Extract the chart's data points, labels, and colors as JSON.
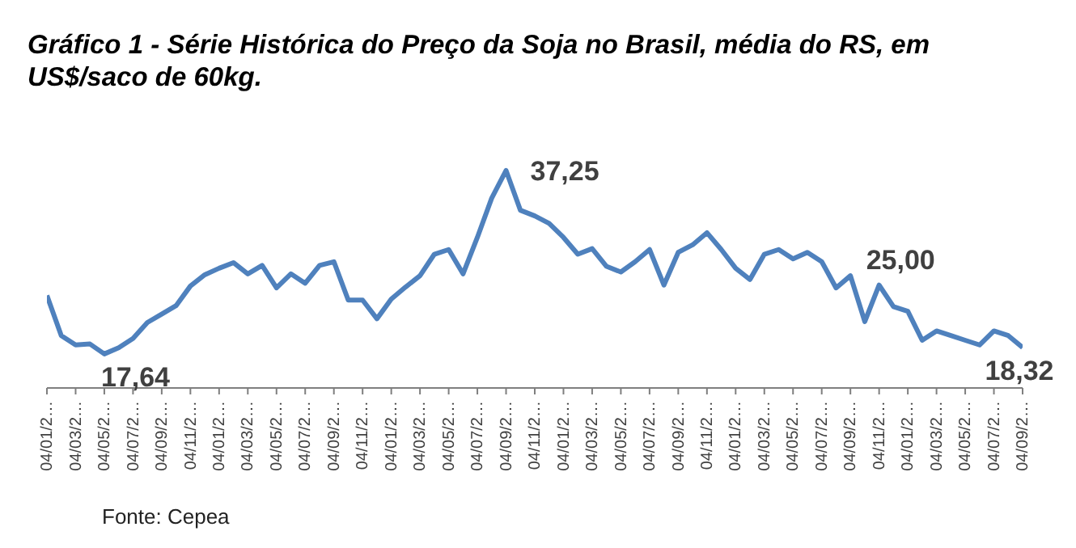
{
  "chart_data": {
    "type": "line",
    "title": "Gráfico 1 - Série Histórica do Preço da Soja no Brasil, média do RS, em US$/saco de 60kg.",
    "annotations": [
      "Fonte: Cepea"
    ],
    "categories": [
      "04/01/2…",
      null,
      "04/03/2…",
      null,
      "04/05/2…",
      null,
      "04/07/2…",
      null,
      "04/09/2…",
      null,
      "04/11/2…",
      null,
      "04/01/2…",
      null,
      "04/03/2…",
      null,
      "04/05/2…",
      null,
      "04/07/2…",
      null,
      "04/09/2…",
      null,
      "04/11/2…",
      null,
      "04/01/2…",
      null,
      "04/03/2…",
      null,
      "04/05/2…",
      null,
      "04/07/2…",
      null,
      "04/09/2…",
      null,
      "04/11/2…",
      null,
      "04/01/2…",
      null,
      "04/03/2…",
      null,
      "04/05/2…",
      null,
      "04/07/2…",
      null,
      "04/09/2…",
      null,
      "04/11/2…",
      null,
      "04/01/2…",
      null,
      "04/03/2…",
      null,
      "04/05/2…",
      null,
      "04/07/2…",
      null,
      "04/09/2…",
      null,
      "04/11/2…",
      null,
      "04/01/2…",
      null,
      "04/03/2…",
      null,
      "04/05/2…",
      null,
      "04/07/2…",
      null,
      "04/09/2…"
    ],
    "series": [
      {
        "color": "#4f81bd",
        "values": [
          23.9,
          19.6,
          18.6,
          18.7,
          17.64,
          18.3,
          19.3,
          21.0,
          21.9,
          22.8,
          24.9,
          26.1,
          26.8,
          27.4,
          26.2,
          27.1,
          24.7,
          26.2,
          25.2,
          27.1,
          27.5,
          23.4,
          23.4,
          21.4,
          23.5,
          24.8,
          26.0,
          28.3,
          28.8,
          26.2,
          30.1,
          34.3,
          37.25,
          33.0,
          32.4,
          31.6,
          30.1,
          28.3,
          28.9,
          27.0,
          26.4,
          27.5,
          28.8,
          25.0,
          28.5,
          29.3,
          30.6,
          28.8,
          26.8,
          25.6,
          28.3,
          28.8,
          27.8,
          28.5,
          27.5,
          24.7,
          26.0,
          21.1,
          25.0,
          22.7,
          22.2,
          19.1,
          20.1,
          19.6,
          19.1,
          18.6,
          20.1,
          19.6,
          18.32
        ],
        "value_labels": [
          null,
          null,
          null,
          null,
          "17,64",
          null,
          null,
          null,
          null,
          null,
          null,
          null,
          null,
          null,
          null,
          null,
          null,
          null,
          null,
          null,
          null,
          null,
          null,
          null,
          null,
          null,
          null,
          null,
          null,
          null,
          null,
          null,
          "37,25",
          null,
          null,
          null,
          null,
          null,
          null,
          null,
          null,
          null,
          null,
          null,
          null,
          null,
          null,
          null,
          null,
          null,
          null,
          null,
          null,
          null,
          null,
          null,
          null,
          null,
          "25,00",
          null,
          null,
          null,
          null,
          null,
          null,
          null,
          null,
          null,
          "18,32"
        ]
      }
    ],
    "tick_labels": "x",
    "grid": false,
    "legend": false,
    "marker": "none",
    "line_style": "solid"
  }
}
